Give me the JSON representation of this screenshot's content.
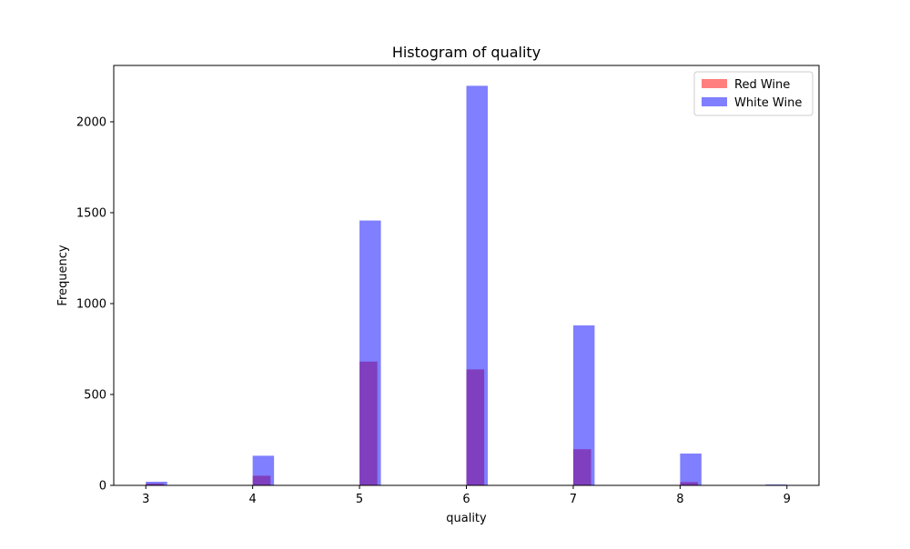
{
  "chart_data": {
    "type": "bar",
    "title": "Histogram of quality",
    "xlabel": "quality",
    "ylabel": "Frequency",
    "xlim": [
      2.7,
      9.3
    ],
    "ylim": [
      0,
      2310
    ],
    "xticks": [
      3,
      4,
      5,
      6,
      7,
      8,
      9
    ],
    "yticks": [
      0,
      500,
      1000,
      1500,
      2000
    ],
    "grid": false,
    "legend_position": "top-right",
    "series": [
      {
        "name": "Red Wine",
        "color": "#ff0000",
        "opacity": 0.5,
        "bin_width": 0.167,
        "bins": [
          {
            "x": 3.0,
            "value": 10
          },
          {
            "x": 4.0,
            "value": 53
          },
          {
            "x": 5.0,
            "value": 681
          },
          {
            "x": 6.0,
            "value": 638
          },
          {
            "x": 7.0,
            "value": 199
          },
          {
            "x": 8.0,
            "value": 18
          }
        ]
      },
      {
        "name": "White Wine",
        "color": "#0000ff",
        "opacity": 0.5,
        "bin_width": 0.2,
        "bins": [
          {
            "x": 3.0,
            "value": 20
          },
          {
            "x": 4.0,
            "value": 163
          },
          {
            "x": 5.0,
            "value": 1457
          },
          {
            "x": 6.0,
            "value": 2198
          },
          {
            "x": 7.0,
            "value": 880
          },
          {
            "x": 8.0,
            "value": 175
          },
          {
            "x": 8.8,
            "value": 5
          }
        ]
      }
    ]
  }
}
